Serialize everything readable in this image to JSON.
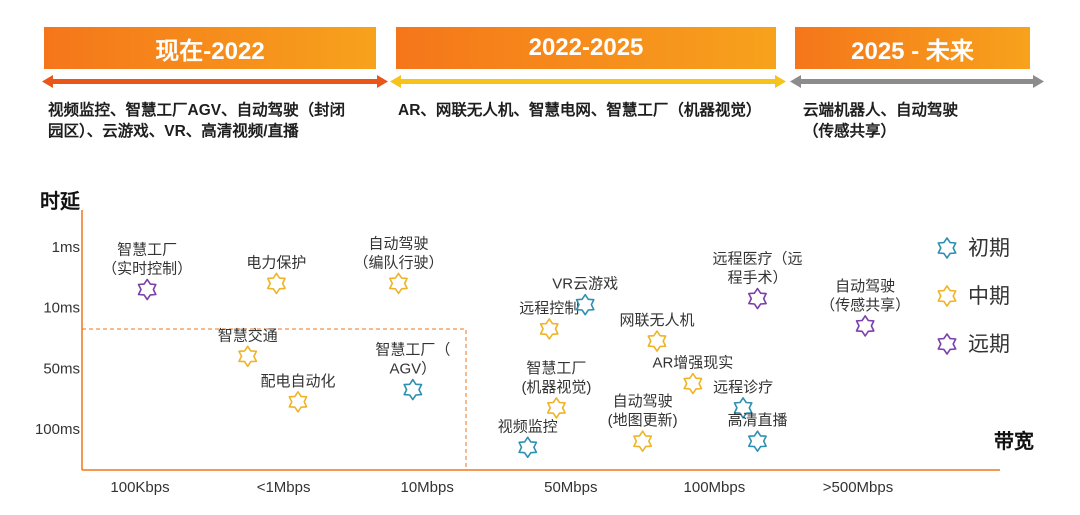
{
  "phases": [
    {
      "label": "现在-2022",
      "desc": [
        "视频监控、智慧工厂AGV、自动驾驶（封闭",
        "园区）、云游戏、VR、高清视频/直播"
      ]
    },
    {
      "label": "2022-2025",
      "desc": [
        "AR、网联无人机、智慧电网、智慧工厂（机器视觉）"
      ]
    },
    {
      "label": "2025 - 未来",
      "desc": [
        "云端机器人、自动驾驶",
        "（传感共享）"
      ]
    }
  ],
  "colors": {
    "early": "#2e8fb0",
    "mid": "#f0b323",
    "late": "#7b3fa8",
    "axis": "#f0761a",
    "phase1_line": "#e9561a",
    "phase2_line": "#f6c21c",
    "phase3_line": "#8c8c8c"
  },
  "chart_data": {
    "type": "scatter",
    "xlabel": "带宽",
    "ylabel": "时延",
    "x_ticks": [
      "100Kbps",
      "<1Mbps",
      "10Mbps",
      "50Mbps",
      "100Mbps",
      ">500Mbps"
    ],
    "y_ticks": [
      "1ms",
      "10ms",
      "50ms",
      "100ms"
    ],
    "legend": [
      {
        "key": "early",
        "label": "初期"
      },
      {
        "key": "mid",
        "label": "中期"
      },
      {
        "key": "late",
        "label": "远期"
      }
    ],
    "legend_position": "right",
    "points": [
      {
        "label": [
          "智慧工厂",
          "（实时控制）"
        ],
        "x": 0.05,
        "y": 0.7,
        "stage": "late"
      },
      {
        "label": [
          "电力保护"
        ],
        "x": 0.95,
        "y": 0.6,
        "stage": "mid"
      },
      {
        "label": [
          "自动驾驶",
          "（编队行驶）"
        ],
        "x": 1.8,
        "y": 0.6,
        "stage": "mid"
      },
      {
        "label": [
          "智慧交通"
        ],
        "x": 0.75,
        "y": 1.8,
        "stage": "mid"
      },
      {
        "label": [
          "配电自动化"
        ],
        "x": 1.1,
        "y": 2.55,
        "stage": "mid"
      },
      {
        "label": [
          "智慧工厂（",
          "AGV）"
        ],
        "x": 1.9,
        "y": 2.35,
        "stage": "early"
      },
      {
        "label": [
          "远程控制"
        ],
        "x": 2.85,
        "y": 1.35,
        "stage": "mid"
      },
      {
        "label": [
          "智慧工厂",
          "(机器视觉)"
        ],
        "x": 2.9,
        "y": 2.65,
        "stage": "mid"
      },
      {
        "label": [
          "视频监控"
        ],
        "x": 2.7,
        "y": 3.3,
        "stage": "early"
      },
      {
        "label": [
          "VR云游戏"
        ],
        "x": 3.1,
        "y": 0.95,
        "stage": "early"
      },
      {
        "label": [
          "网联无人机"
        ],
        "x": 3.6,
        "y": 1.55,
        "stage": "mid"
      },
      {
        "label": [
          "AR增强现实"
        ],
        "x": 3.85,
        "y": 2.25,
        "stage": "mid"
      },
      {
        "label": [
          "自动驾驶",
          "(地图更新)"
        ],
        "x": 3.5,
        "y": 3.2,
        "stage": "mid"
      },
      {
        "label": [
          "远程医疗（远",
          "程手术）"
        ],
        "x": 4.3,
        "y": 0.85,
        "stage": "late"
      },
      {
        "label": [
          "远程诊疗"
        ],
        "x": 4.2,
        "y": 2.65,
        "stage": "early"
      },
      {
        "label": [
          "高清直播"
        ],
        "x": 4.3,
        "y": 3.2,
        "stage": "early"
      },
      {
        "label": [
          "自动驾驶",
          "（传感共享）"
        ],
        "x": 5.05,
        "y": 1.3,
        "stage": "late"
      }
    ]
  }
}
